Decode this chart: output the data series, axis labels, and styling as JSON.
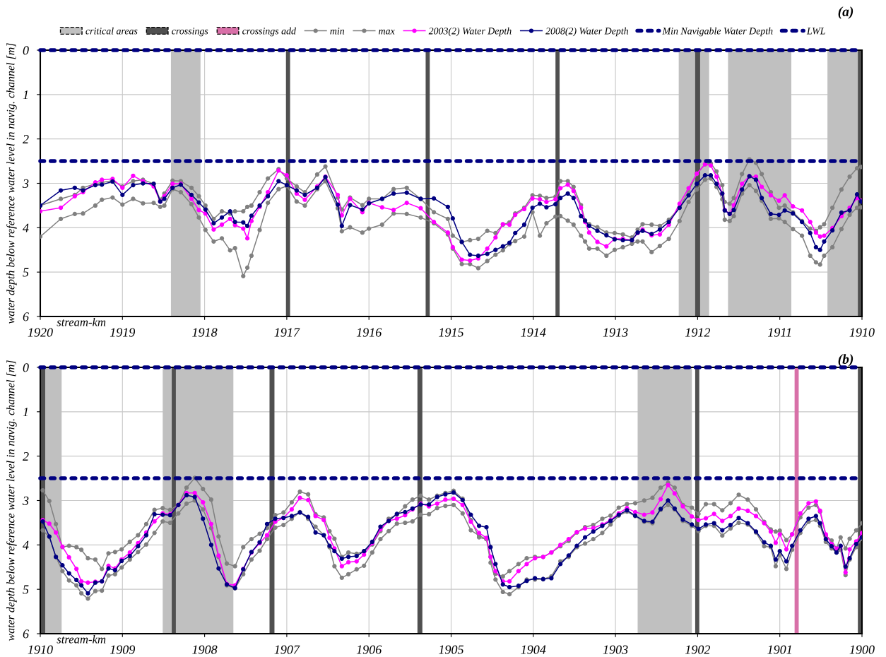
{
  "chart_data": [
    {
      "type": "line",
      "title": "(a)",
      "xlabel": "stream-km",
      "ylabel": "water depth below reference water level in navig. channel [m]",
      "xlim": [
        1920,
        1910
      ],
      "xticks": [
        1920,
        1919,
        1918,
        1917,
        1916,
        1915,
        1914,
        1913,
        1912,
        1911,
        1910
      ],
      "ylim": [
        6,
        0
      ],
      "yticks": [
        0,
        1,
        2,
        3,
        4,
        5,
        6
      ],
      "grid": true,
      "marker": "circle",
      "legend": "top",
      "x": [
        1920.0,
        1919.75,
        1919.58,
        1919.48,
        1919.33,
        1919.25,
        1919.12,
        1919.0,
        1918.87,
        1918.75,
        1918.62,
        1918.54,
        1918.49,
        1918.39,
        1918.29,
        1918.16,
        1918.07,
        1917.99,
        1917.89,
        1917.79,
        1917.69,
        1917.63,
        1917.53,
        1917.48,
        1917.43,
        1917.33,
        1917.23,
        1917.1,
        1917.0,
        1916.88,
        1916.78,
        1916.63,
        1916.53,
        1916.38,
        1916.33,
        1916.23,
        1916.08,
        1916.0,
        1915.84,
        1915.7,
        1915.54,
        1915.37,
        1915.21,
        1915.04,
        1914.98,
        1914.87,
        1914.77,
        1914.67,
        1914.56,
        1914.46,
        1914.37,
        1914.29,
        1914.22,
        1914.11,
        1914.01,
        1913.92,
        1913.84,
        1913.73,
        1913.67,
        1913.58,
        1913.51,
        1913.42,
        1913.37,
        1913.32,
        1913.22,
        1913.11,
        1913.01,
        1912.91,
        1912.8,
        1912.73,
        1912.67,
        1912.56,
        1912.46,
        1912.35,
        1912.22,
        1912.11,
        1912.01,
        1911.91,
        1911.84,
        1911.77,
        1911.7,
        1911.67,
        1911.61,
        1911.56,
        1911.46,
        1911.37,
        1911.29,
        1911.22,
        1911.11,
        1911.01,
        1910.94,
        1910.84,
        1910.73,
        1910.63,
        1910.56,
        1910.51,
        1910.46,
        1910.36,
        1910.25,
        1910.15,
        1910.06,
        1910.01
      ],
      "bands": [
        {
          "axis": "x",
          "from": 1918.41,
          "to": 1918.05,
          "label": "critical areas",
          "color": "#c0c0c0"
        },
        {
          "axis": "x",
          "from": 1912.23,
          "to": 1911.86,
          "color": "#c0c0c0"
        },
        {
          "axis": "x",
          "from": 1911.63,
          "to": 1910.86,
          "color": "#c0c0c0"
        },
        {
          "axis": "x",
          "from": 1910.42,
          "to": 1910.03,
          "color": "#c0c0c0"
        },
        {
          "axis": "x",
          "from": 1917.01,
          "to": 1916.96,
          "label": "crossings",
          "color": "#505050"
        },
        {
          "axis": "x",
          "from": 1915.31,
          "to": 1915.26,
          "color": "#505050"
        },
        {
          "axis": "x",
          "from": 1913.73,
          "to": 1913.68,
          "color": "#505050"
        },
        {
          "axis": "x",
          "from": 1912.03,
          "to": 1911.97,
          "color": "#505050"
        },
        {
          "axis": "x",
          "from": 1910.05,
          "to": 1910.0,
          "color": "#505050"
        }
      ],
      "ref_lines": [
        {
          "axis": "y",
          "value": 2.5,
          "label": "Min Navigable Water Depth",
          "color": "#000080"
        },
        {
          "axis": "y",
          "value": 0,
          "label": "LWL",
          "color": "#000080"
        }
      ],
      "series": [
        {
          "name": "min",
          "color": "#808080",
          "values": [
            3.5,
            3.35,
            3.26,
            3.1,
            3.01,
            2.98,
            2.94,
            3.07,
            2.95,
            2.92,
            3.01,
            3.37,
            3.23,
            2.94,
            2.95,
            3.1,
            3.29,
            3.5,
            3.8,
            3.63,
            3.68,
            3.63,
            3.63,
            3.53,
            3.5,
            3.2,
            2.89,
            2.68,
            2.89,
            3.07,
            3.2,
            2.8,
            2.62,
            3.32,
            3.59,
            3.32,
            3.49,
            3.35,
            3.35,
            3.13,
            3.1,
            3.35,
            3.65,
            3.8,
            4.18,
            4.32,
            4.28,
            4.25,
            4.07,
            4.12,
            3.93,
            3.88,
            3.68,
            3.55,
            3.27,
            3.28,
            3.33,
            3.3,
            2.95,
            2.95,
            3.08,
            3.49,
            3.84,
            3.92,
            3.99,
            4.11,
            4.12,
            4.15,
            4.22,
            4.04,
            3.92,
            3.93,
            3.96,
            3.82,
            3.55,
            3.17,
            2.79,
            2.57,
            2.55,
            2.73,
            3.04,
            3.42,
            3.46,
            3.33,
            2.79,
            2.46,
            2.54,
            2.79,
            3.2,
            3.55,
            3.5,
            3.65,
            3.85,
            4.02,
            4.07,
            3.99,
            3.92,
            3.55,
            3.14,
            2.85,
            2.66,
            2.63
          ]
        },
        {
          "name": "max",
          "color": "#808080",
          "values": [
            4.2,
            3.8,
            3.69,
            3.68,
            3.5,
            3.37,
            3.32,
            3.48,
            3.35,
            3.45,
            3.44,
            3.53,
            3.5,
            3.13,
            3.2,
            3.47,
            3.77,
            4.05,
            4.31,
            4.24,
            4.51,
            4.46,
            5.09,
            4.9,
            4.63,
            4.05,
            3.44,
            3.13,
            3.06,
            3.41,
            3.5,
            3.13,
            2.95,
            3.56,
            4.08,
            3.99,
            4.11,
            4.02,
            3.93,
            3.68,
            3.69,
            3.77,
            3.9,
            4.15,
            4.47,
            4.82,
            4.82,
            4.91,
            4.75,
            4.61,
            4.51,
            4.37,
            4.3,
            4.2,
            3.65,
            4.18,
            3.9,
            3.75,
            3.74,
            3.84,
            3.93,
            4.18,
            4.31,
            4.47,
            4.47,
            4.63,
            4.5,
            4.44,
            4.36,
            4.31,
            4.31,
            4.55,
            4.41,
            4.25,
            3.85,
            3.42,
            3.14,
            2.92,
            2.89,
            3.08,
            3.36,
            3.82,
            3.85,
            3.74,
            3.23,
            3.04,
            3.17,
            3.39,
            3.8,
            3.79,
            3.87,
            4.03,
            4.18,
            4.63,
            4.78,
            4.83,
            4.63,
            4.44,
            4.03,
            3.71,
            3.55,
            3.54
          ]
        },
        {
          "name": "2003(2) Water Depth",
          "color": "#ff00ff",
          "values": [
            3.63,
            3.55,
            3.29,
            3.2,
            2.98,
            2.92,
            2.9,
            3.1,
            2.83,
            2.95,
            3.07,
            3.41,
            3.29,
            3.01,
            3.01,
            3.35,
            3.6,
            3.68,
            4.04,
            3.93,
            3.8,
            3.94,
            4.02,
            4.24,
            3.85,
            3.53,
            3.2,
            2.71,
            2.82,
            3.23,
            3.37,
            3.07,
            2.85,
            3.26,
            3.72,
            3.35,
            3.65,
            3.44,
            3.54,
            3.6,
            3.44,
            3.56,
            3.87,
            4.11,
            4.44,
            4.72,
            4.74,
            4.69,
            4.47,
            4.22,
            3.92,
            3.93,
            3.71,
            3.58,
            3.34,
            3.36,
            3.42,
            3.36,
            3.11,
            3.03,
            3.17,
            3.55,
            3.87,
            4.11,
            4.32,
            4.42,
            4.25,
            4.25,
            4.28,
            4.12,
            4.04,
            4.17,
            4.15,
            3.93,
            3.46,
            3.11,
            2.78,
            2.57,
            2.6,
            2.85,
            3.23,
            3.6,
            3.69,
            3.49,
            3.01,
            2.84,
            2.85,
            3.08,
            3.27,
            3.39,
            3.27,
            3.52,
            3.61,
            3.87,
            4.11,
            4.2,
            4.18,
            4.01,
            3.74,
            3.55,
            3.33,
            3.39
          ]
        },
        {
          "name": "2008(2) Water Depth",
          "color": "#000080",
          "values": [
            3.5,
            3.16,
            3.1,
            3.16,
            3.04,
            3.03,
            2.96,
            3.26,
            3.04,
            3.0,
            3.01,
            3.41,
            3.35,
            3.1,
            3.03,
            3.26,
            3.43,
            3.59,
            3.9,
            3.77,
            3.63,
            3.87,
            3.88,
            3.96,
            3.73,
            3.5,
            3.29,
            2.95,
            3.04,
            3.16,
            3.26,
            3.1,
            2.86,
            3.48,
            3.96,
            3.49,
            3.59,
            3.45,
            3.35,
            3.23,
            3.21,
            3.35,
            3.34,
            3.53,
            3.79,
            4.32,
            4.61,
            4.63,
            4.59,
            4.5,
            4.42,
            4.34,
            4.12,
            3.93,
            3.55,
            3.46,
            3.54,
            3.47,
            3.33,
            3.23,
            3.33,
            3.74,
            3.84,
            3.96,
            4.07,
            4.17,
            4.26,
            4.28,
            4.28,
            4.11,
            4.07,
            4.14,
            4.04,
            3.87,
            3.55,
            3.27,
            3.01,
            2.82,
            2.82,
            3.01,
            3.23,
            3.61,
            3.69,
            3.6,
            3.14,
            2.84,
            2.92,
            3.33,
            3.69,
            3.71,
            3.61,
            3.68,
            3.87,
            4.12,
            4.44,
            4.5,
            4.31,
            4.06,
            3.66,
            3.61,
            3.25,
            3.41
          ]
        }
      ]
    },
    {
      "type": "line",
      "title": "(b)",
      "xlabel": "stream-km",
      "ylabel": "water depth below reference water level in navig. channel [m]",
      "xlim": [
        1910,
        1900
      ],
      "xticks": [
        1910,
        1909,
        1908,
        1907,
        1906,
        1905,
        1904,
        1903,
        1902,
        1901,
        1900
      ],
      "ylim": [
        6,
        0
      ],
      "yticks": [
        0,
        1,
        2,
        3,
        4,
        5,
        6
      ],
      "grid": true,
      "marker": "circle",
      "x": [
        1909.97,
        1909.89,
        1909.81,
        1909.73,
        1909.65,
        1909.56,
        1909.5,
        1909.42,
        1909.33,
        1909.25,
        1909.17,
        1909.09,
        1909.01,
        1908.91,
        1908.81,
        1908.71,
        1908.61,
        1908.51,
        1908.42,
        1908.32,
        1908.22,
        1908.12,
        1908.02,
        1907.92,
        1907.83,
        1907.73,
        1907.63,
        1907.53,
        1907.43,
        1907.33,
        1907.24,
        1907.14,
        1907.04,
        1906.94,
        1906.84,
        1906.74,
        1906.65,
        1906.55,
        1906.48,
        1906.42,
        1906.33,
        1906.25,
        1906.15,
        1906.06,
        1905.96,
        1905.86,
        1905.76,
        1905.66,
        1905.56,
        1905.47,
        1905.37,
        1905.27,
        1905.17,
        1905.07,
        1904.97,
        1904.86,
        1904.76,
        1904.66,
        1904.57,
        1904.52,
        1904.46,
        1904.37,
        1904.29,
        1904.18,
        1904.08,
        1903.98,
        1903.88,
        1903.78,
        1903.67,
        1903.57,
        1903.47,
        1903.37,
        1903.27,
        1903.16,
        1903.06,
        1902.96,
        1902.86,
        1902.76,
        1902.65,
        1902.55,
        1902.45,
        1902.36,
        1902.28,
        1902.18,
        1902.07,
        1901.99,
        1901.9,
        1901.8,
        1901.7,
        1901.6,
        1901.5,
        1901.39,
        1901.29,
        1901.19,
        1901.11,
        1901.05,
        1901.0,
        1900.92,
        1900.85,
        1900.75,
        1900.65,
        1900.56,
        1900.51,
        1900.44,
        1900.37,
        1900.31,
        1900.26,
        1900.2,
        1900.15,
        1900.07,
        1900.0
      ],
      "bands": [
        {
          "axis": "x",
          "from": 1909.94,
          "to": 1909.74,
          "color": "#c0c0c0"
        },
        {
          "axis": "x",
          "from": 1908.51,
          "to": 1907.65,
          "color": "#c0c0c0"
        },
        {
          "axis": "x",
          "from": 1902.73,
          "to": 1902.07,
          "color": "#c0c0c0"
        },
        {
          "axis": "x",
          "from": 1910.0,
          "to": 1909.94,
          "color": "#505050"
        },
        {
          "axis": "x",
          "from": 1908.4,
          "to": 1908.35,
          "color": "#505050"
        },
        {
          "axis": "x",
          "from": 1907.21,
          "to": 1907.15,
          "color": "#505050"
        },
        {
          "axis": "x",
          "from": 1905.41,
          "to": 1905.35,
          "color": "#505050"
        },
        {
          "axis": "x",
          "from": 1902.03,
          "to": 1901.98,
          "color": "#505050"
        },
        {
          "axis": "x",
          "from": 1900.05,
          "to": 1900.0,
          "color": "#505050"
        },
        {
          "axis": "x",
          "from": 1900.82,
          "to": 1900.77,
          "label": "crossings add",
          "color": "#d870a8"
        }
      ],
      "ref_lines": [
        {
          "axis": "y",
          "value": 2.5,
          "color": "#000080"
        },
        {
          "axis": "y",
          "value": 0,
          "color": "#000080"
        }
      ],
      "series": [
        {
          "name": "min",
          "color": "#808080",
          "values": [
            2.77,
            3.01,
            3.53,
            4.05,
            4.02,
            4.05,
            4.11,
            4.3,
            4.33,
            4.54,
            4.19,
            4.16,
            4.1,
            3.93,
            3.78,
            3.53,
            3.21,
            3.17,
            3.21,
            3.1,
            2.71,
            2.49,
            2.74,
            2.98,
            3.81,
            4.42,
            4.48,
            4.05,
            3.87,
            3.75,
            3.62,
            3.33,
            3.27,
            3.04,
            2.8,
            2.86,
            3.31,
            3.38,
            3.69,
            3.86,
            4.27,
            4.17,
            4.2,
            4.14,
            3.99,
            3.69,
            3.41,
            3.32,
            3.13,
            2.98,
            2.89,
            2.98,
            2.89,
            2.83,
            2.78,
            2.96,
            3.44,
            3.83,
            3.87,
            4.27,
            4.65,
            4.71,
            4.59,
            4.43,
            4.3,
            4.27,
            4.27,
            4.17,
            4.03,
            3.91,
            3.72,
            3.6,
            3.55,
            3.41,
            3.34,
            3.16,
            3.08,
            3.06,
            3.0,
            2.94,
            2.71,
            2.6,
            2.71,
            3.1,
            3.16,
            3.3,
            3.08,
            3.08,
            3.22,
            3.06,
            2.87,
            2.98,
            3.2,
            3.48,
            3.65,
            3.7,
            3.68,
            3.89,
            3.76,
            3.38,
            3.16,
            3.1,
            3.25,
            3.79,
            3.9,
            4.08,
            3.83,
            4.08,
            3.86,
            3.67,
            3.51
          ]
        },
        {
          "name": "max",
          "color": "#808080",
          "values": [
            3.67,
            3.82,
            4.27,
            4.59,
            4.8,
            4.91,
            5.09,
            5.21,
            5.04,
            5.03,
            4.69,
            4.66,
            4.51,
            4.33,
            4.16,
            3.99,
            3.73,
            3.47,
            3.5,
            3.29,
            3.07,
            3.0,
            3.2,
            3.62,
            4.27,
            4.91,
            4.98,
            4.66,
            4.33,
            4.13,
            3.87,
            3.61,
            3.55,
            3.41,
            3.26,
            3.41,
            3.59,
            3.78,
            4.05,
            4.48,
            4.74,
            4.66,
            4.55,
            4.47,
            4.17,
            3.87,
            3.69,
            3.52,
            3.5,
            3.47,
            3.32,
            3.31,
            3.17,
            3.12,
            3.1,
            3.29,
            3.67,
            3.79,
            3.87,
            4.4,
            4.78,
            5.06,
            5.11,
            4.95,
            4.78,
            4.78,
            4.77,
            4.71,
            4.37,
            4.27,
            4.05,
            3.97,
            3.87,
            3.73,
            3.54,
            3.34,
            3.25,
            3.35,
            3.48,
            3.51,
            3.21,
            3.1,
            3.2,
            3.46,
            3.57,
            3.69,
            3.57,
            3.57,
            3.79,
            3.63,
            3.5,
            3.54,
            3.72,
            4.03,
            4.05,
            4.48,
            4.23,
            4.54,
            4.11,
            3.73,
            3.48,
            3.44,
            3.57,
            3.93,
            4.08,
            4.17,
            4.11,
            4.68,
            4.33,
            4.05,
            3.86
          ]
        },
        {
          "name": "2003(2) Water Depth",
          "color": "#ff00ff",
          "values": [
            3.44,
            3.52,
            3.72,
            4.04,
            4.28,
            4.54,
            4.82,
            4.85,
            4.83,
            4.82,
            4.47,
            4.53,
            4.33,
            4.17,
            3.96,
            3.72,
            3.47,
            3.29,
            3.31,
            3.1,
            2.83,
            2.83,
            3.04,
            3.53,
            4.24,
            4.88,
            4.91,
            4.54,
            4.17,
            3.96,
            3.78,
            3.48,
            3.39,
            3.2,
            2.94,
            2.99,
            3.35,
            3.44,
            3.84,
            4.08,
            4.48,
            4.39,
            4.37,
            4.22,
            3.96,
            3.65,
            3.46,
            3.41,
            3.33,
            3.2,
            3.07,
            3.13,
            3.07,
            2.98,
            2.96,
            3.1,
            3.48,
            3.73,
            3.84,
            4.27,
            4.59,
            4.82,
            4.82,
            4.59,
            4.43,
            4.3,
            4.27,
            4.17,
            4.0,
            3.87,
            3.71,
            3.63,
            3.62,
            3.54,
            3.44,
            3.29,
            3.17,
            3.26,
            3.32,
            3.27,
            2.97,
            2.65,
            2.84,
            3.13,
            3.36,
            3.44,
            3.4,
            3.3,
            3.46,
            3.35,
            3.18,
            3.23,
            3.35,
            3.51,
            3.7,
            3.95,
            3.76,
            4.1,
            3.76,
            3.29,
            3.06,
            3.02,
            3.23,
            3.76,
            3.98,
            4.08,
            4.03,
            4.62,
            4.1,
            3.92,
            3.73
          ]
        },
        {
          "name": "2008(2) Water Depth",
          "color": "#000080",
          "values": [
            3.47,
            3.81,
            4.27,
            4.46,
            4.64,
            4.79,
            4.91,
            5.09,
            4.85,
            4.82,
            4.53,
            4.57,
            4.36,
            4.25,
            4.03,
            3.78,
            3.31,
            3.32,
            3.33,
            3.1,
            2.88,
            2.92,
            3.41,
            4.0,
            4.53,
            4.89,
            4.97,
            4.55,
            4.16,
            3.94,
            3.53,
            3.41,
            3.39,
            3.35,
            3.27,
            3.37,
            3.72,
            3.78,
            4.02,
            4.14,
            4.31,
            4.27,
            4.25,
            4.14,
            3.93,
            3.59,
            3.46,
            3.3,
            3.26,
            3.18,
            3.09,
            3.09,
            2.92,
            2.86,
            2.82,
            2.99,
            3.32,
            3.57,
            3.6,
            4.05,
            4.43,
            4.89,
            4.95,
            4.92,
            4.81,
            4.75,
            4.77,
            4.75,
            4.43,
            4.24,
            4.02,
            3.83,
            3.7,
            3.57,
            3.46,
            3.32,
            3.22,
            3.34,
            3.46,
            3.48,
            3.19,
            3.0,
            3.18,
            3.43,
            3.54,
            3.64,
            3.54,
            3.51,
            3.67,
            3.55,
            3.39,
            3.51,
            3.7,
            3.94,
            4.02,
            4.33,
            4.14,
            4.37,
            4.02,
            3.67,
            3.41,
            3.35,
            3.51,
            3.87,
            4.03,
            4.17,
            4.02,
            4.49,
            4.3,
            3.98,
            3.83
          ]
        }
      ]
    }
  ]
}
